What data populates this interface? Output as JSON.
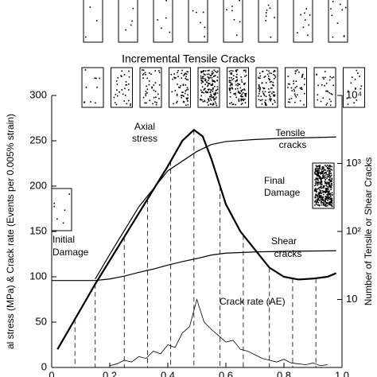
{
  "chart_data": {
    "type": "line",
    "title": "Incremental Tensile Cracks",
    "y_label": "al stress (MPa) & Crack rate (Events per 0.005% strain)",
    "y2_label": "Number of Tensile or Shear Cracks",
    "xlim": [
      0,
      1
    ],
    "xticks": [
      0,
      0.2,
      0.4,
      0.6,
      0.8,
      {
        "value": 1,
        "label": "1.0"
      }
    ],
    "ylim": [
      0,
      300
    ],
    "yticks": [
      0,
      50,
      100,
      150,
      200,
      250,
      300
    ],
    "y2lim": [
      1,
      10000
    ],
    "y2log": true,
    "y2ticks": [
      10,
      {
        "value": 100,
        "label": "10²"
      },
      {
        "value": 1000,
        "label": "10³"
      },
      {
        "value": 10000,
        "label": "10⁴"
      }
    ],
    "series": [
      {
        "name": "Axial stress",
        "color": "#000000",
        "axis": "y",
        "x": [
          0.02,
          0.15,
          0.3,
          0.4,
          0.45,
          0.49,
          0.52,
          0.55,
          0.6,
          0.65,
          0.7,
          0.75,
          0.8,
          0.85,
          0.9,
          0.95,
          0.98
        ],
        "values": [
          20,
          92,
          170,
          222,
          250,
          262,
          255,
          230,
          180,
          150,
          130,
          110,
          100,
          97,
          98,
          100,
          104
        ]
      },
      {
        "name": "Tensile cracks",
        "color": "#000000",
        "axis": "y2",
        "x": [
          0.15,
          0.2,
          0.3,
          0.4,
          0.5,
          0.55,
          0.6,
          0.7,
          0.8,
          0.9,
          0.98
        ],
        "values": [
          20,
          46,
          230,
          780,
          1500,
          1900,
          2100,
          2250,
          2350,
          2400,
          2450
        ]
      },
      {
        "name": "Shear cracks",
        "color": "#000000",
        "axis": "y2",
        "x": [
          0,
          0.15,
          0.2,
          0.25,
          0.3,
          0.35,
          0.4,
          0.45,
          0.5,
          0.55,
          0.6,
          0.7,
          0.8,
          0.98
        ],
        "values": [
          19,
          19,
          20,
          22,
          25,
          28,
          32,
          36,
          40,
          45,
          48,
          50,
          51,
          52
        ]
      },
      {
        "name": "Crack rate (AE)",
        "color": "#000000",
        "axis": "y",
        "x": [
          0.2,
          0.225,
          0.25,
          0.275,
          0.3,
          0.325,
          0.35,
          0.375,
          0.4,
          0.425,
          0.45,
          0.475,
          0.5,
          0.525,
          0.55,
          0.575,
          0.6,
          0.625,
          0.65,
          0.675,
          0.7,
          0.725,
          0.75,
          0.775,
          0.8,
          0.825,
          0.85,
          0.875,
          0.9,
          0.925,
          0.95
        ],
        "values": [
          2,
          4,
          8,
          6,
          12,
          10,
          18,
          15,
          25,
          22,
          38,
          45,
          75,
          50,
          42,
          35,
          28,
          30,
          20,
          18,
          14,
          10,
          8,
          6,
          9,
          5,
          4,
          3,
          5,
          2,
          3
        ]
      }
    ],
    "snapshot_x": [
      0.08,
      0.15,
      0.25,
      0.33,
      0.41,
      0.49,
      0.58,
      0.66,
      0.75,
      0.83,
      0.91
    ],
    "annotations": {
      "axial_stress": [
        "Axial",
        "stress"
      ],
      "tensile": [
        "Tensile",
        "cracks"
      ],
      "shear": [
        "Shear",
        "cracks"
      ],
      "crack_rate": "Crack rate (AE)",
      "final": [
        "Final",
        "Damage"
      ],
      "initial": [
        "Initial",
        "Damage"
      ]
    }
  }
}
